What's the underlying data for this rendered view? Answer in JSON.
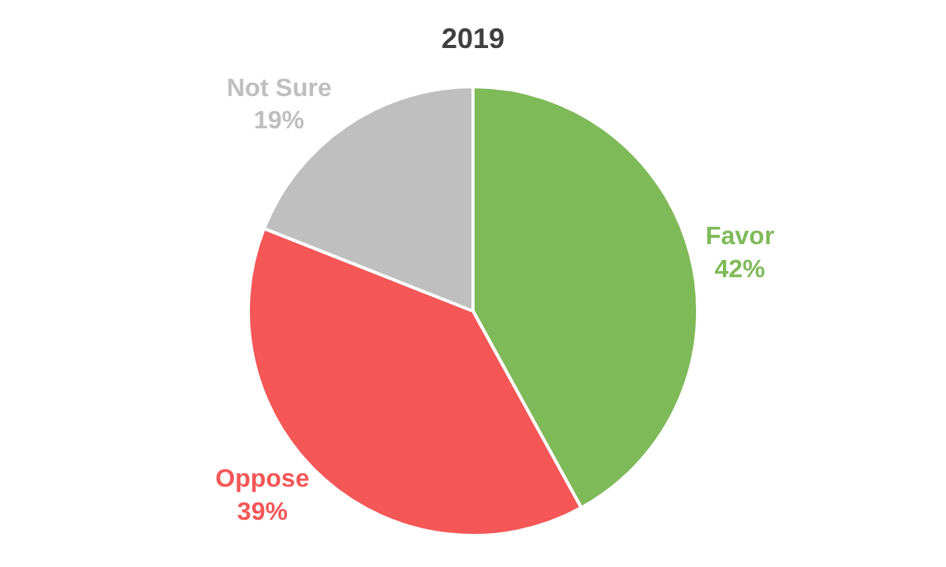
{
  "chart_data": {
    "type": "pie",
    "title": "2019",
    "categories": [
      "Favor",
      "Oppose",
      "Not Sure"
    ],
    "values": [
      42,
      39,
      19
    ],
    "value_labels": [
      "42%",
      "39%",
      "19%"
    ],
    "colors": [
      "#7fba59",
      "#f55656",
      "#bfbfbf"
    ],
    "legend": false
  }
}
